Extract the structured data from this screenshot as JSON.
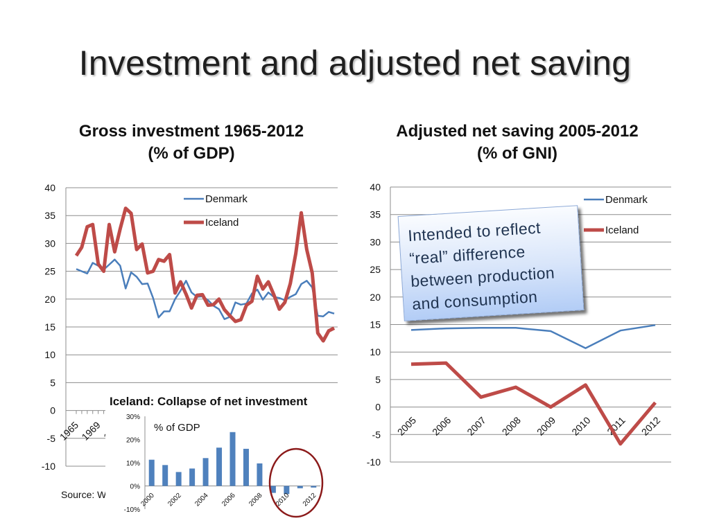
{
  "slide": {
    "title": "Investment and adjusted net saving",
    "source_label": "Source: Wo"
  },
  "left_heading": {
    "line1": "Gross investment 1965-2012",
    "line2": "(% of GDP)"
  },
  "right_heading": {
    "line1": "Adjusted net saving 2005-2012",
    "line2": "(% of GNI)"
  },
  "callout": {
    "lines": [
      "Intended to reflect",
      "“real” difference",
      "between production",
      "and consumption"
    ]
  },
  "inset": {
    "title": "Iceland: Collapse of net investment",
    "unit_label": "% of GDP"
  },
  "colors": {
    "denmark": "#4a7ebb",
    "iceland": "#be4b48",
    "bar": "#4f81bd",
    "circle": "#8b1a1a"
  },
  "chart_data": [
    {
      "type": "line",
      "title": "Gross investment 1965-2012 (% of GDP)",
      "ylim": [
        -10,
        40
      ],
      "yticks": [
        -10,
        -5,
        0,
        5,
        10,
        15,
        20,
        25,
        30,
        35,
        40
      ],
      "x_tick_labels": [
        "1965",
        "1969",
        "1973"
      ],
      "grid": true,
      "legend": "top-center",
      "x": [
        1965,
        1966,
        1967,
        1968,
        1969,
        1970,
        1971,
        1972,
        1973,
        1974,
        1975,
        1976,
        1977,
        1978,
        1979,
        1980,
        1981,
        1982,
        1983,
        1984,
        1985,
        1986,
        1987,
        1988,
        1989,
        1990,
        1991,
        1992,
        1993,
        1994,
        1995,
        1996,
        1997,
        1998,
        1999,
        2000,
        2001,
        2002,
        2003,
        2004,
        2005,
        2006,
        2007,
        2008,
        2009,
        2010,
        2011,
        2012
      ],
      "series": [
        {
          "name": "Denmark",
          "values": [
            25.4,
            25.0,
            24.6,
            26.5,
            26.0,
            25.3,
            26.2,
            27.1,
            26.0,
            21.9,
            24.8,
            24.0,
            22.7,
            22.8,
            20.2,
            16.7,
            17.8,
            17.8,
            20.0,
            21.5,
            23.3,
            21.2,
            20.4,
            20.5,
            19.8,
            18.8,
            18.2,
            16.4,
            16.8,
            19.4,
            19.0,
            19.2,
            21.0,
            21.7,
            19.9,
            21.2,
            20.4,
            20.2,
            19.8,
            20.4,
            20.9,
            22.7,
            23.3,
            22.1,
            17.0,
            16.9,
            17.7,
            17.4
          ]
        },
        {
          "name": "Iceland",
          "values": [
            27.8,
            29.3,
            33.0,
            33.4,
            26.3,
            25.0,
            33.4,
            28.5,
            32.6,
            36.3,
            35.4,
            28.9,
            29.9,
            24.7,
            25.0,
            27.1,
            26.8,
            28.0,
            21.1,
            23.1,
            20.9,
            18.4,
            20.7,
            20.8,
            18.9,
            19.0,
            20.0,
            18.1,
            17.0,
            16.0,
            16.3,
            18.9,
            19.6,
            24.1,
            21.8,
            23.1,
            20.8,
            18.2,
            19.4,
            22.8,
            28.2,
            35.5,
            28.9,
            24.7,
            13.9,
            12.5,
            14.3,
            14.8
          ]
        }
      ]
    },
    {
      "type": "line",
      "title": "Adjusted net saving 2005-2012 (% of GNI)",
      "ylim": [
        -10,
        40
      ],
      "yticks": [
        -10,
        -5,
        0,
        5,
        10,
        15,
        20,
        25,
        30,
        35,
        40
      ],
      "x": [
        2005,
        2006,
        2007,
        2008,
        2009,
        2010,
        2011,
        2012
      ],
      "x_tick_labels": [
        "2005",
        "2006",
        "2007",
        "2008",
        "2009",
        "2010",
        "2011",
        "2012"
      ],
      "grid": true,
      "legend": "top-right",
      "series": [
        {
          "name": "Denmark",
          "values": [
            14.0,
            14.3,
            14.4,
            14.4,
            13.8,
            10.7,
            13.9,
            14.9
          ]
        },
        {
          "name": "Iceland",
          "values": [
            7.8,
            8.0,
            1.8,
            3.6,
            0.0,
            4.0,
            -6.7,
            0.8
          ]
        }
      ]
    },
    {
      "type": "bar",
      "title": "Iceland: Collapse of net investment",
      "ylabel": "% of GDP",
      "ylim": [
        -10,
        30
      ],
      "ytick_labels": [
        "-10%",
        "0%",
        "10%",
        "20%",
        "30%"
      ],
      "yticks": [
        -10,
        0,
        10,
        20,
        30
      ],
      "categories": [
        "2000",
        "2001",
        "2002",
        "2003",
        "2004",
        "2005",
        "2006",
        "2007",
        "2008",
        "2009",
        "2010",
        "2011",
        "2012"
      ],
      "x_tick_labels": [
        "2000",
        "2002",
        "2004",
        "2006",
        "2008",
        "2010",
        "2012"
      ],
      "values": [
        11.3,
        9.0,
        6.0,
        7.5,
        12.0,
        16.5,
        23.2,
        16.0,
        9.7,
        -3.0,
        -3.5,
        -1.0,
        -0.7
      ]
    }
  ]
}
